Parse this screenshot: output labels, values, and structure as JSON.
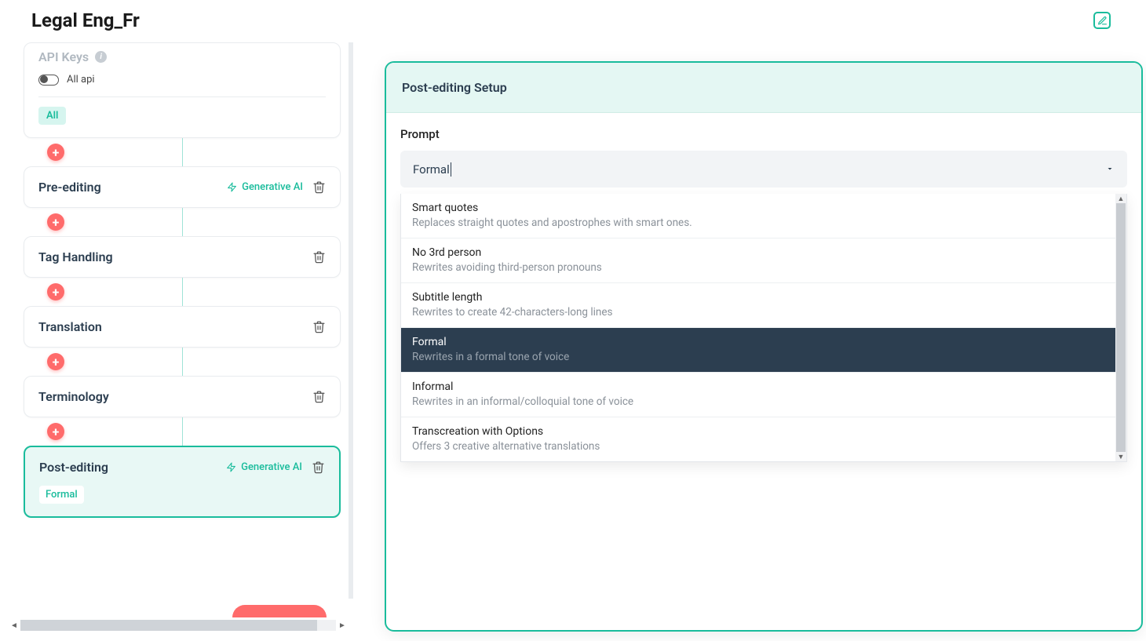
{
  "colors": {
    "accent": "#1abc9c",
    "accent_light": "#e4f7f3",
    "accent_chip_bg": "#d6f5ef",
    "danger": "#ff6b6b",
    "text": "#2c3e50",
    "muted": "#8a9199",
    "border": "#e9ecef",
    "dropdown_selected_bg": "#2c3e50",
    "scrollbar_thumb": "#c8ccd1"
  },
  "header": {
    "title": "Legal Eng_Fr"
  },
  "api_card": {
    "title": "API Keys",
    "toggle_label": "All api",
    "toggle_on": false,
    "chip": "All"
  },
  "gen_ai_label": "Generative AI",
  "pipeline": [
    {
      "title": "Pre-editing",
      "gen_ai": true,
      "deletable": true,
      "selected": false
    },
    {
      "title": "Tag Handling",
      "gen_ai": false,
      "deletable": true,
      "selected": false
    },
    {
      "title": "Translation",
      "gen_ai": false,
      "deletable": true,
      "selected": false
    },
    {
      "title": "Terminology",
      "gen_ai": false,
      "deletable": true,
      "selected": false
    },
    {
      "title": "Post-editing",
      "gen_ai": true,
      "deletable": true,
      "selected": true,
      "chip": "Formal"
    }
  ],
  "panel": {
    "title": "Post-editing Setup",
    "prompt_label": "Prompt",
    "select_value": "Formal",
    "options": [
      {
        "title": "Smart quotes",
        "desc": "Replaces straight quotes and apostrophes with smart ones.",
        "selected": false
      },
      {
        "title": "No 3rd person",
        "desc": "Rewrites avoiding third-person pronouns",
        "selected": false
      },
      {
        "title": "Subtitle length",
        "desc": "Rewrites to create 42-characters-long lines",
        "selected": false
      },
      {
        "title": "Formal",
        "desc": "Rewrites in a formal tone of voice",
        "selected": true
      },
      {
        "title": "Informal",
        "desc": "Rewrites in an informal/colloquial tone of voice",
        "selected": false
      },
      {
        "title": "Transcreation with Options",
        "desc": "Offers 3 creative alternative translations",
        "selected": false
      }
    ]
  }
}
